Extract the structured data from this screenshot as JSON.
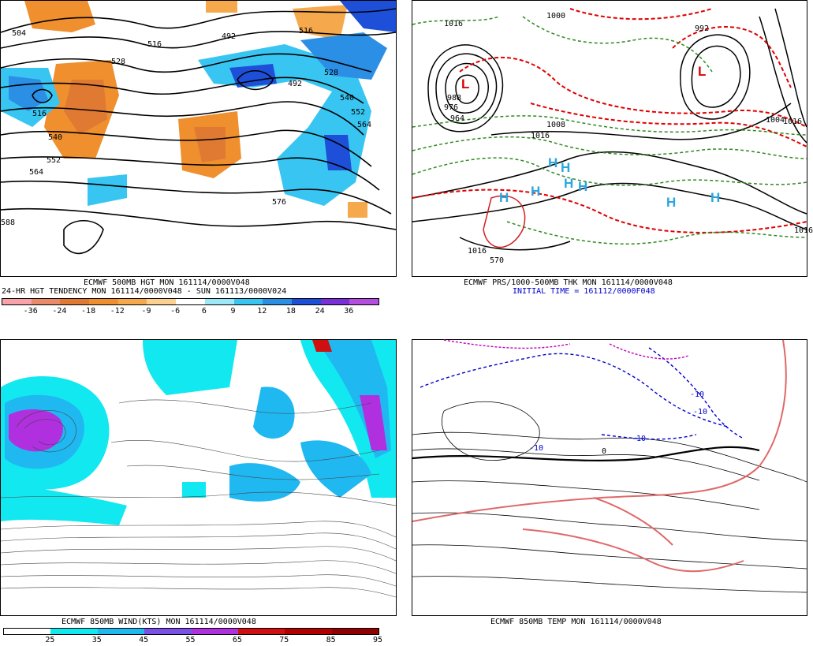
{
  "panels": {
    "p1": {
      "caption1": "ECMWF 500MB HGT MON 161114/0000V048",
      "caption2": "24-HR HGT TENDENCY MON 161114/0000V048 - SUN 161113/0000V024",
      "colorbar_labels": [
        "-36",
        "-24",
        "-18",
        "-12",
        "-9",
        "-6",
        "6",
        "9",
        "12",
        "18",
        "24",
        "36"
      ],
      "colorbar_colors": [
        "#f7a3a8",
        "#e98a6b",
        "#e07a33",
        "#ef8f2e",
        "#f5a94c",
        "#fbd090",
        "#ffffff",
        "#9ee7f8",
        "#39c5f2",
        "#2c8fe6",
        "#1d4fd8",
        "#7a2fd8",
        "#b44ee0"
      ],
      "contour_labels": [
        "504",
        "516",
        "528",
        "540",
        "552",
        "564",
        "516",
        "492",
        "516",
        "528",
        "540",
        "552",
        "564",
        "576",
        "588",
        "492"
      ]
    },
    "p2": {
      "caption1": "ECMWF PRS/1000-500MB THK MON 161114/0000V048",
      "caption2": "INITIAL TIME = 161112/0000F048",
      "h_markers": [
        "H",
        "H",
        "H",
        "H",
        "H",
        "H",
        "H"
      ],
      "l_markers": [
        "L",
        "L"
      ],
      "contour_labels": [
        "1016",
        "1000",
        "988",
        "976",
        "964",
        "1016",
        "1008",
        "1016",
        "570",
        "1016",
        "992",
        "1004",
        "1016"
      ]
    },
    "p3": {
      "caption1": "ECMWF 850MB WIND(KTS) MON 161114/0000V048",
      "colorbar_labels": [
        "25",
        "35",
        "45",
        "55",
        "65",
        "75",
        "85",
        "95"
      ],
      "colorbar_colors": [
        "#ffffff",
        "#12e8f0",
        "#20b8f0",
        "#7a50e8",
        "#b030e0",
        "#d01010",
        "#b00000",
        "#900000"
      ]
    },
    "p4": {
      "caption1": "ECMWF 850MB TEMP MON 161114/0000V048",
      "contour_labels": [
        "-10",
        "-10",
        "-10",
        "0",
        "-10"
      ]
    }
  }
}
